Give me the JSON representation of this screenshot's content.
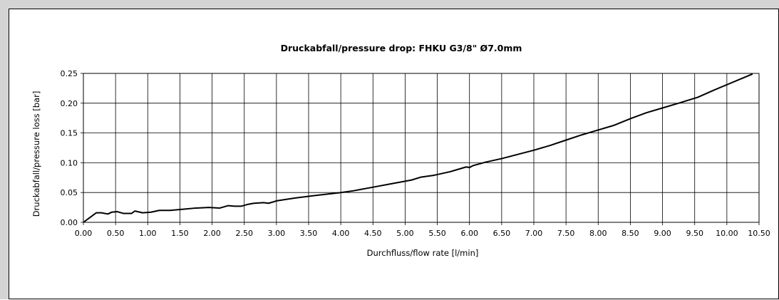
{
  "chart_data": {
    "type": "line",
    "title": "Druckabfall/pressure drop: FHKU G3/8\" Ø7.0mm",
    "xlabel": "Durchfluss/flow rate [l/min]",
    "ylabel": "Druckabfall/pressure loss [bar]",
    "xlim": [
      0,
      10.5
    ],
    "ylim": [
      0,
      0.25
    ],
    "grid": true,
    "x_ticks": [
      "0.00",
      "0.50",
      "1.00",
      "1.50",
      "2.00",
      "2.50",
      "3.00",
      "3.50",
      "4.00",
      "4.50",
      "5.00",
      "5.50",
      "6.00",
      "6.50",
      "7.00",
      "7.50",
      "8.00",
      "8.50",
      "9.00",
      "9.50",
      "10.00",
      "10.50"
    ],
    "y_ticks": [
      "0.00",
      "0.05",
      "0.10",
      "0.15",
      "0.20",
      "0.25"
    ],
    "series": [
      {
        "color": "#000000",
        "points": [
          [
            0.0,
            0.0
          ],
          [
            0.2,
            0.016
          ],
          [
            0.28,
            0.016
          ],
          [
            0.38,
            0.014
          ],
          [
            0.44,
            0.017
          ],
          [
            0.52,
            0.018
          ],
          [
            0.62,
            0.015
          ],
          [
            0.75,
            0.015
          ],
          [
            0.8,
            0.019
          ],
          [
            0.92,
            0.016
          ],
          [
            1.05,
            0.017
          ],
          [
            1.18,
            0.02
          ],
          [
            1.35,
            0.02
          ],
          [
            1.55,
            0.022
          ],
          [
            1.75,
            0.024
          ],
          [
            1.95,
            0.025
          ],
          [
            2.12,
            0.024
          ],
          [
            2.25,
            0.028
          ],
          [
            2.35,
            0.027
          ],
          [
            2.45,
            0.027
          ],
          [
            2.55,
            0.03
          ],
          [
            2.65,
            0.032
          ],
          [
            2.8,
            0.033
          ],
          [
            2.88,
            0.032
          ],
          [
            3.0,
            0.036
          ],
          [
            3.3,
            0.041
          ],
          [
            3.6,
            0.045
          ],
          [
            4.0,
            0.05
          ],
          [
            4.2,
            0.053
          ],
          [
            4.5,
            0.059
          ],
          [
            4.8,
            0.065
          ],
          [
            5.1,
            0.071
          ],
          [
            5.25,
            0.076
          ],
          [
            5.45,
            0.079
          ],
          [
            5.7,
            0.085
          ],
          [
            5.95,
            0.093
          ],
          [
            6.0,
            0.092
          ],
          [
            6.05,
            0.095
          ],
          [
            6.25,
            0.101
          ],
          [
            6.5,
            0.107
          ],
          [
            6.75,
            0.114
          ],
          [
            7.0,
            0.121
          ],
          [
            7.25,
            0.129
          ],
          [
            7.5,
            0.138
          ],
          [
            7.75,
            0.147
          ],
          [
            8.0,
            0.155
          ],
          [
            8.25,
            0.163
          ],
          [
            8.5,
            0.174
          ],
          [
            8.75,
            0.184
          ],
          [
            9.0,
            0.192
          ],
          [
            9.25,
            0.2
          ],
          [
            9.55,
            0.21
          ],
          [
            9.8,
            0.222
          ],
          [
            10.0,
            0.231
          ],
          [
            10.2,
            0.24
          ],
          [
            10.4,
            0.249
          ]
        ]
      }
    ]
  }
}
